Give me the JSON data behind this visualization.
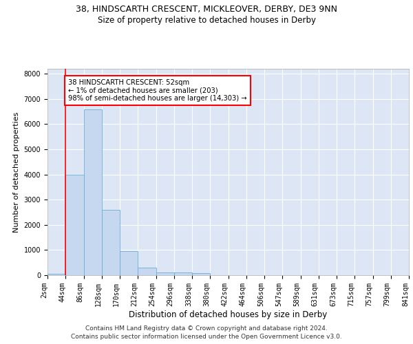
{
  "title1": "38, HINDSCARTH CRESCENT, MICKLEOVER, DERBY, DE3 9NN",
  "title2": "Size of property relative to detached houses in Derby",
  "xlabel": "Distribution of detached houses by size in Derby",
  "ylabel": "Number of detached properties",
  "bar_values": [
    50,
    4000,
    6600,
    2600,
    950,
    300,
    120,
    100,
    70,
    0,
    0,
    0,
    0,
    0,
    0,
    0,
    0,
    0,
    0,
    0
  ],
  "bar_labels": [
    "2sqm",
    "44sqm",
    "86sqm",
    "128sqm",
    "170sqm",
    "212sqm",
    "254sqm",
    "296sqm",
    "338sqm",
    "380sqm",
    "422sqm",
    "464sqm",
    "506sqm",
    "547sqm",
    "589sqm",
    "631sqm",
    "673sqm",
    "715sqm",
    "757sqm",
    "799sqm",
    "841sqm"
  ],
  "bar_color": "#c5d8f0",
  "bar_edge_color": "#6baed6",
  "annotation_box_text": "38 HINDSCARTH CRESCENT: 52sqm\n← 1% of detached houses are smaller (203)\n98% of semi-detached houses are larger (14,303) →",
  "ylim": [
    0,
    8200
  ],
  "yticks": [
    0,
    1000,
    2000,
    3000,
    4000,
    5000,
    6000,
    7000,
    8000
  ],
  "red_line_x": 1.0,
  "footer1": "Contains HM Land Registry data © Crown copyright and database right 2024.",
  "footer2": "Contains public sector information licensed under the Open Government Licence v3.0.",
  "background_color": "#dce6f5",
  "grid_color": "#ffffff",
  "title1_fontsize": 9,
  "title2_fontsize": 8.5,
  "axis_label_fontsize": 8,
  "tick_fontsize": 7,
  "footer_fontsize": 6.5
}
